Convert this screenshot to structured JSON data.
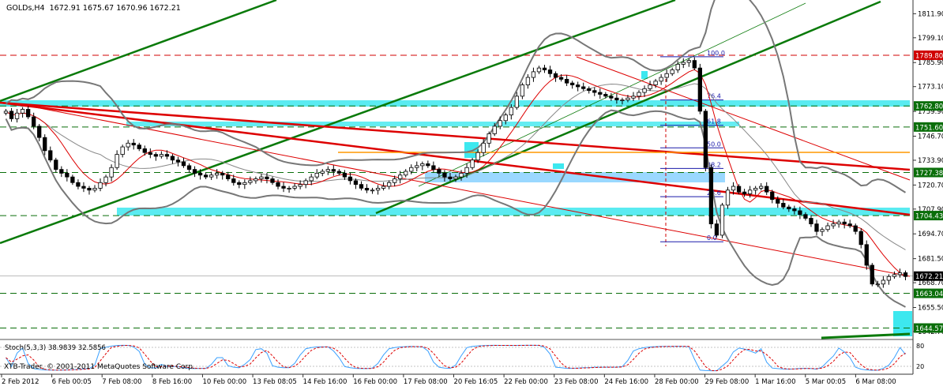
{
  "symbol_header": {
    "symbol": "GOLDs,H4",
    "ohlc": "1672.91 1675.67 1670.96 1672.21"
  },
  "footer": {
    "copyright": "XTB-Trader, © 2001-2011 MetaQuotes Software Corp."
  },
  "chart_data": {
    "type": "candlestick",
    "ylim": [
      1641,
      1815
    ],
    "price_ticks": [
      "1811.90",
      "1799.10",
      "1785.90",
      "1773.10",
      "1759.90",
      "1746.70",
      "1733.90",
      "1720.70",
      "1707.90",
      "1694.70",
      "1681.50",
      "1668.70",
      "1655.50",
      "1642.70"
    ],
    "price_tick_values": [
      1811.9,
      1799.1,
      1785.9,
      1773.1,
      1759.9,
      1746.7,
      1733.9,
      1720.7,
      1707.9,
      1694.7,
      1681.5,
      1668.7,
      1655.5,
      1642.7
    ],
    "current_price": {
      "label": "1672.21",
      "value": 1672.21
    },
    "level_labels": [
      {
        "label": "1789.80",
        "value": 1789.8,
        "color": "#d00000"
      },
      {
        "label": "1762.80",
        "value": 1762.8,
        "color": "#0a6e0a"
      },
      {
        "label": "1751.60",
        "value": 1751.6,
        "color": "#0a6e0a"
      },
      {
        "label": "1727.38",
        "value": 1727.38,
        "color": "#0a6e0a"
      },
      {
        "label": "1704.43",
        "value": 1704.43,
        "color": "#0a6e0a"
      },
      {
        "label": "1663.04",
        "value": 1663.04,
        "color": "#0a6e0a"
      },
      {
        "label": "1644.57",
        "value": 1644.57,
        "color": "#0a6e0a"
      }
    ],
    "time_labels": [
      "2 Feb 2012",
      "6 Feb 00:05",
      "7 Feb 08:00",
      "8 Feb 16:00",
      "10 Feb 00:00",
      "13 Feb 08:05",
      "14 Feb 16:00",
      "16 Feb 00:00",
      "17 Feb 08:00",
      "20 Feb 16:05",
      "22 Feb 00:00",
      "23 Feb 08:00",
      "24 Feb 16:00",
      "28 Feb 00:00",
      "29 Feb 08:00",
      "1 Mar 16:00",
      "5 Mar 00:05",
      "6 Mar 08:00"
    ],
    "fib_levels": [
      {
        "label": "100.0",
        "value": 1789.0
      },
      {
        "label": "76.4",
        "value": 1766.0
      },
      {
        "label": "61.8",
        "value": 1752.5
      },
      {
        "label": "50.0",
        "value": 1740.5
      },
      {
        "label": "38.2",
        "value": 1729.5
      },
      {
        "label": "23.6",
        "value": 1714.5
      },
      {
        "label": "0.0",
        "value": 1690.5
      }
    ],
    "closes": [
      1760,
      1756,
      1759,
      1761,
      1757,
      1752,
      1746,
      1739,
      1734,
      1729,
      1727,
      1725,
      1722,
      1720,
      1719,
      1718,
      1719,
      1722,
      1725,
      1730,
      1737,
      1741,
      1743,
      1742,
      1740,
      1738,
      1737,
      1736,
      1737,
      1736,
      1734,
      1733,
      1731,
      1729,
      1727,
      1726,
      1725,
      1726,
      1727,
      1726,
      1724,
      1722,
      1721,
      1722,
      1723,
      1724,
      1725,
      1724,
      1722,
      1720,
      1719,
      1719,
      1720,
      1721,
      1723,
      1725,
      1727,
      1728,
      1729,
      1728,
      1727,
      1725,
      1723,
      1721,
      1719,
      1718,
      1718,
      1719,
      1720,
      1722,
      1724,
      1726,
      1728,
      1730,
      1731,
      1732,
      1731,
      1729,
      1727,
      1725,
      1724,
      1725,
      1727,
      1730,
      1734,
      1738,
      1743,
      1748,
      1752,
      1755,
      1758,
      1762,
      1768,
      1774,
      1778,
      1781,
      1783,
      1782,
      1780,
      1778,
      1777,
      1775,
      1774,
      1773,
      1772,
      1771,
      1770,
      1769,
      1768,
      1767,
      1766,
      1766,
      1767,
      1768,
      1770,
      1772,
      1774,
      1776,
      1778,
      1780,
      1782,
      1785,
      1786,
      1787,
      1783,
      1760,
      1730,
      1700,
      1694,
      1710,
      1718,
      1720,
      1717,
      1716,
      1718,
      1719,
      1720,
      1717,
      1713,
      1711,
      1709,
      1708,
      1707,
      1705,
      1703,
      1700,
      1696,
      1697,
      1699,
      1700,
      1701,
      1700,
      1699,
      1696,
      1689,
      1678,
      1668,
      1668,
      1670,
      1672,
      1673,
      1674,
      1672
    ]
  }
}
